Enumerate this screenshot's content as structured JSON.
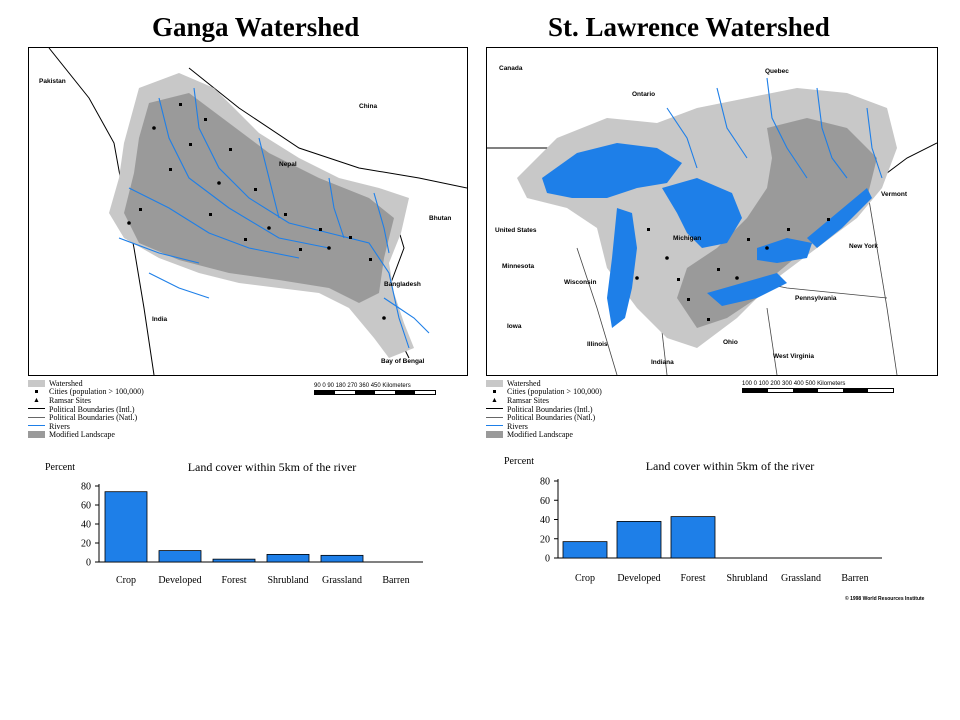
{
  "titles": {
    "left": "Ganga Watershed",
    "right": "St. Lawrence Watershed"
  },
  "ganga_map": {
    "labels": [
      "Pakistan",
      "China",
      "Nepal",
      "Bhutan",
      "Bangladesh",
      "India",
      "Bay of Bengal"
    ],
    "scale_text": "90 0 90 180 270 360 450 Kilometers"
  },
  "stlawrence_map": {
    "labels": [
      "Canada",
      "Ontario",
      "Quebec",
      "United States",
      "Vermont",
      "New York",
      "Minnesota",
      "Wisconsin",
      "Michigan",
      "Iowa",
      "Illinois",
      "Indiana",
      "Ohio",
      "Pennsylvania",
      "West Virginia"
    ],
    "scale_text": "100 0 100 200 300 400 500 Kilometers"
  },
  "legend": {
    "items": [
      "Watershed",
      "Cities (population > 100,000)",
      "Ramsar Sites",
      "Political Boundaries (Intl.)",
      "Political Boundaries (Natl.)",
      "Rivers",
      "Modified Landscape"
    ],
    "colors": {
      "watershed": "#c8c8c8",
      "modified": "#9a9a9a",
      "river": "#1e7fe8"
    }
  },
  "chart_data": [
    {
      "type": "bar",
      "title": "Land cover within 5km of the river",
      "ylabel": "Percent",
      "categories": [
        "Crop",
        "Developed",
        "Forest",
        "Shrubland",
        "Grassland",
        "Barren"
      ],
      "values": [
        74,
        12,
        3,
        8,
        7,
        0
      ],
      "ylim": [
        0,
        80
      ],
      "yticks": [
        "0",
        "20",
        "40",
        "60",
        "80"
      ],
      "bar_color": "#1e7fe8"
    },
    {
      "type": "bar",
      "title": "Land cover within 5km of the river",
      "ylabel": "Percent",
      "categories": [
        "Crop",
        "Developed",
        "Forest",
        "Shrubland",
        "Grassland",
        "Barren"
      ],
      "values": [
        17,
        38,
        43,
        0,
        0,
        0
      ],
      "ylim": [
        0,
        80
      ],
      "yticks": [
        "0",
        "20",
        "40",
        "60",
        "80"
      ],
      "bar_color": "#1e7fe8"
    }
  ],
  "credit": "© 1998 World Resources Institute"
}
